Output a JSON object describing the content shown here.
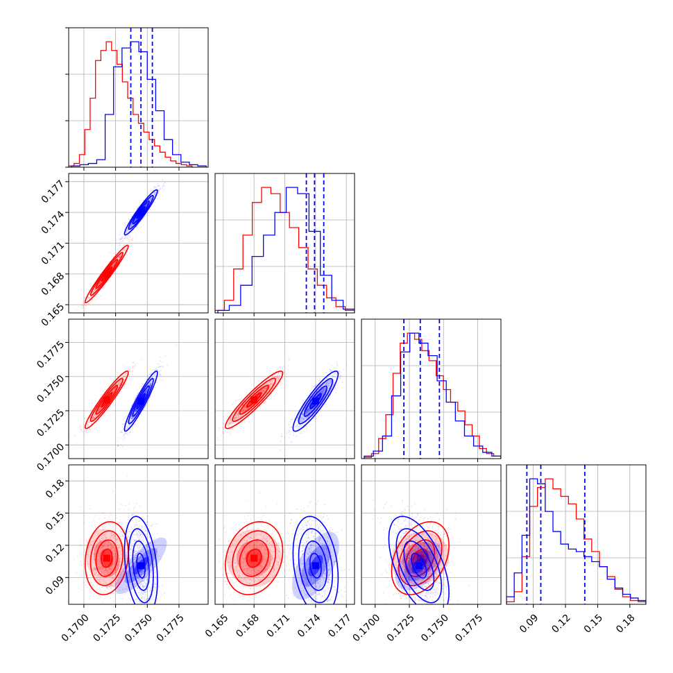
{
  "chart_data": {
    "type": "corner",
    "parameters": [
      {
        "ticks": [
          0.17,
          0.1725,
          0.175,
          0.1775
        ],
        "tick_labels": [
          "0.1700",
          "0.1725",
          "0.1750",
          "0.1775"
        ],
        "range": [
          0.1688,
          0.1798
        ]
      },
      {
        "ticks": [
          0.165,
          0.168,
          0.171,
          0.174,
          0.177
        ],
        "tick_labels": [
          "0.165",
          "0.168",
          "0.171",
          "0.174",
          "0.177"
        ],
        "range": [
          0.1642,
          0.1778
        ]
      },
      {
        "ticks": [
          0.17,
          0.1725,
          0.175,
          0.1775
        ],
        "tick_labels": [
          "0.1700",
          "0.1725",
          "0.1750",
          "0.1775"
        ],
        "range": [
          0.169,
          0.1792
        ]
      },
      {
        "ticks": [
          0.09,
          0.12,
          0.15,
          0.18
        ],
        "tick_labels": [
          "0.09",
          "0.12",
          "0.15",
          "0.18"
        ],
        "range": [
          0.065,
          0.195
        ]
      }
    ],
    "colors": {
      "red": "#ff0000",
      "blue": "#0000ff",
      "grid": "#b0b0b0"
    },
    "grid": true,
    "series": [
      {
        "color_key": "red",
        "means": [
          0.1718,
          0.168,
          0.1733,
          0.108
        ],
        "sigmas": [
          0.00085,
          0.0014,
          0.00105,
          0.017
        ],
        "correlations": [
          [
            0,
            1,
            0.97
          ],
          [
            0,
            2,
            0.95
          ],
          [
            1,
            2,
            0.93
          ],
          [
            0,
            3,
            0.15
          ],
          [
            1,
            3,
            0.2
          ],
          [
            2,
            3,
            0.35
          ]
        ],
        "histograms": [
          [
            0.01,
            0.03,
            0.1,
            0.3,
            0.55,
            0.85,
            0.93,
            1.0,
            0.93,
            0.82,
            0.68,
            0.55,
            0.42,
            0.35,
            0.28,
            0.22,
            0.17,
            0.12,
            0.08,
            0.05,
            0.03,
            0.02,
            0.01
          ],
          [
            0.02,
            0.1,
            0.35,
            0.62,
            0.88,
            1.0,
            0.95,
            0.8,
            0.68,
            0.52,
            0.35,
            0.22,
            0.12,
            0.05,
            0.02
          ],
          [
            0.01,
            0.04,
            0.16,
            0.35,
            0.68,
            0.92,
            1.0,
            0.95,
            0.86,
            0.78,
            0.66,
            0.55,
            0.45,
            0.38,
            0.27,
            0.18,
            0.08,
            0.04,
            0.02
          ],
          [
            0.02,
            0.1,
            0.38,
            0.78,
            0.93,
            1.0,
            0.92,
            0.86,
            0.8,
            0.68,
            0.52,
            0.42,
            0.3,
            0.22,
            0.12,
            0.06,
            0.03,
            0.02
          ]
        ]
      },
      {
        "color_key": "blue",
        "means": [
          0.1745,
          0.174,
          0.1732,
          0.101
        ],
        "sigmas": [
          0.00065,
          0.0011,
          0.0011,
          0.023
        ],
        "correlations": [
          [
            0,
            1,
            0.95
          ],
          [
            0,
            2,
            0.94
          ],
          [
            1,
            2,
            0.9
          ],
          [
            0,
            3,
            -0.3
          ],
          [
            1,
            3,
            -0.25
          ],
          [
            2,
            3,
            -0.55
          ]
        ],
        "histograms": [
          [
            0.01,
            0.02,
            0.03,
            0.06,
            0.42,
            0.8,
            0.95,
            1.0,
            0.92,
            0.7,
            0.45,
            0.22,
            0.1,
            0.04,
            0.02,
            0.01
          ],
          [
            0.02,
            0.06,
            0.22,
            0.45,
            0.62,
            0.8,
            1.0,
            0.95,
            0.65,
            0.3,
            0.1,
            0.03
          ],
          [
            0.02,
            0.06,
            0.18,
            0.5,
            0.85,
            1.0,
            0.92,
            0.82,
            0.62,
            0.45,
            0.3,
            0.18,
            0.1,
            0.05,
            0.02
          ],
          [
            0.06,
            0.25,
            0.55,
            1.0,
            0.96,
            0.74,
            0.58,
            0.48,
            0.44,
            0.42,
            0.38,
            0.34,
            0.3,
            0.2,
            0.13,
            0.08,
            0.05,
            0.03
          ]
        ],
        "quantiles": [
          [
            0.1737,
            0.1745,
            0.1754
          ],
          [
            0.1731,
            0.1739,
            0.1748
          ],
          [
            0.1721,
            0.1733,
            0.1747
          ],
          [
            0.084,
            0.097,
            0.138
          ]
        ]
      }
    ]
  }
}
